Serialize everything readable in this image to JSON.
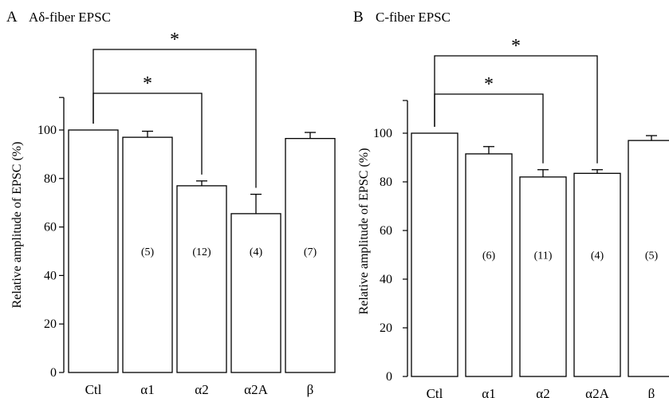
{
  "chart_data": [
    {
      "type": "bar",
      "panel_label": "A",
      "title": "Aδ-fiber EPSC",
      "ylabel": "Relative amplitude of EPSC (%)",
      "xlabel": "",
      "ylim": [
        0,
        120
      ],
      "yticks": [
        0,
        20,
        40,
        60,
        80,
        100
      ],
      "categories": [
        "Ctl",
        "α1",
        "α2",
        "α2A",
        "β"
      ],
      "values": [
        100,
        97,
        77,
        65.5,
        96.5
      ],
      "errors": [
        0,
        2.5,
        2,
        8,
        2.5
      ],
      "n_labels": [
        "",
        "(5)",
        "(12)",
        "(4)",
        "(7)"
      ],
      "significance": [
        {
          "from": "Ctl",
          "to": "α2",
          "label": "*"
        },
        {
          "from": "Ctl",
          "to": "α2A",
          "label": "*"
        }
      ]
    },
    {
      "type": "bar",
      "panel_label": "B",
      "title": "C-fiber EPSC",
      "ylabel": "Relative amplitude of EPSC (%)",
      "xlabel": "",
      "ylim": [
        0,
        120
      ],
      "yticks": [
        0,
        20,
        40,
        60,
        80,
        100
      ],
      "categories": [
        "Ctl",
        "α1",
        "α2",
        "α2A",
        "β"
      ],
      "values": [
        100,
        91.5,
        82,
        83.5,
        97
      ],
      "errors": [
        0,
        3,
        3,
        1.5,
        2
      ],
      "n_labels": [
        "",
        "(6)",
        "(11)",
        "(4)",
        "(5)"
      ],
      "significance": [
        {
          "from": "Ctl",
          "to": "α2",
          "label": "*"
        },
        {
          "from": "Ctl",
          "to": "α2A",
          "label": "*"
        }
      ]
    }
  ]
}
